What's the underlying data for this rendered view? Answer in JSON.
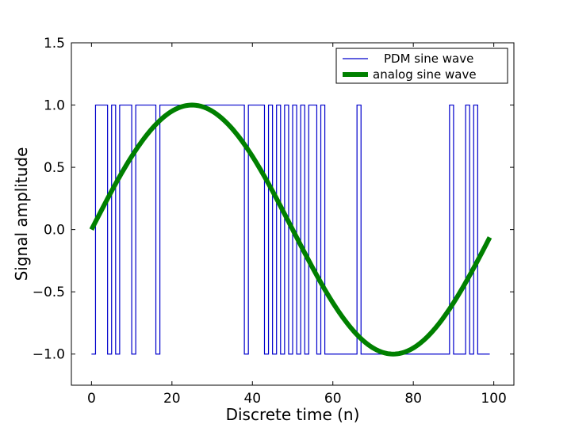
{
  "chart_data": {
    "type": "line",
    "title": "",
    "xlabel": "Discrete time (n)",
    "ylabel": "Signal amplitude",
    "xlim": [
      -5,
      105
    ],
    "ylim": [
      -1.25,
      1.5
    ],
    "x_ticks": [
      0,
      20,
      40,
      60,
      80,
      100
    ],
    "x_tick_labels": [
      "0",
      "20",
      "40",
      "60",
      "80",
      "100"
    ],
    "y_ticks": [
      -1.0,
      -0.5,
      0.0,
      0.5,
      1.0,
      1.5
    ],
    "y_tick_labels": [
      "−1.0",
      "−0.5",
      "0.0",
      "0.5",
      "1.0",
      "1.5"
    ],
    "grid": false,
    "legend_position": "top-right",
    "series": [
      {
        "name": "PDM sine wave",
        "style": "step",
        "color": "#0000cc",
        "x": [
          0,
          1,
          2,
          3,
          4,
          5,
          6,
          7,
          8,
          9,
          10,
          11,
          12,
          13,
          14,
          15,
          16,
          17,
          18,
          19,
          20,
          21,
          22,
          23,
          24,
          25,
          26,
          27,
          28,
          29,
          30,
          31,
          32,
          33,
          34,
          35,
          36,
          37,
          38,
          39,
          40,
          41,
          42,
          43,
          44,
          45,
          46,
          47,
          48,
          49,
          50,
          51,
          52,
          53,
          54,
          55,
          56,
          57,
          58,
          59,
          60,
          61,
          62,
          63,
          64,
          65,
          66,
          67,
          68,
          69,
          70,
          71,
          72,
          73,
          74,
          75,
          76,
          77,
          78,
          79,
          80,
          81,
          82,
          83,
          84,
          85,
          86,
          87,
          88,
          89,
          90,
          91,
          92,
          93,
          94,
          95,
          96,
          97,
          98,
          99
        ],
        "values": [
          -1,
          1,
          1,
          1,
          -1,
          1,
          -1,
          1,
          1,
          1,
          -1,
          1,
          1,
          1,
          1,
          1,
          -1,
          1,
          1,
          1,
          1,
          1,
          1,
          1,
          1,
          1,
          1,
          1,
          1,
          1,
          1,
          1,
          1,
          1,
          1,
          1,
          1,
          1,
          -1,
          1,
          1,
          1,
          1,
          -1,
          1,
          -1,
          1,
          -1,
          1,
          -1,
          1,
          -1,
          1,
          -1,
          1,
          1,
          -1,
          1,
          -1,
          -1,
          -1,
          -1,
          -1,
          -1,
          -1,
          -1,
          1,
          -1,
          -1,
          -1,
          -1,
          -1,
          -1,
          -1,
          -1,
          -1,
          -1,
          -1,
          -1,
          -1,
          -1,
          -1,
          -1,
          -1,
          -1,
          -1,
          -1,
          -1,
          -1,
          1,
          -1,
          -1,
          -1,
          1,
          -1,
          1,
          -1,
          -1,
          -1,
          -1
        ]
      },
      {
        "name": "analog sine wave",
        "style": "line",
        "color": "#008000",
        "formula": "sin(2*pi*n/100)",
        "x": [
          0,
          5,
          10,
          15,
          20,
          25,
          30,
          35,
          40,
          45,
          50,
          55,
          60,
          65,
          70,
          75,
          80,
          85,
          90,
          95,
          99
        ],
        "values": [
          0.0,
          0.309,
          0.588,
          0.809,
          0.951,
          1.0,
          0.951,
          0.809,
          0.588,
          0.309,
          0.0,
          -0.309,
          -0.588,
          -0.809,
          -0.951,
          -1.0,
          -0.951,
          -0.809,
          -0.588,
          -0.309,
          -0.063
        ]
      }
    ]
  }
}
